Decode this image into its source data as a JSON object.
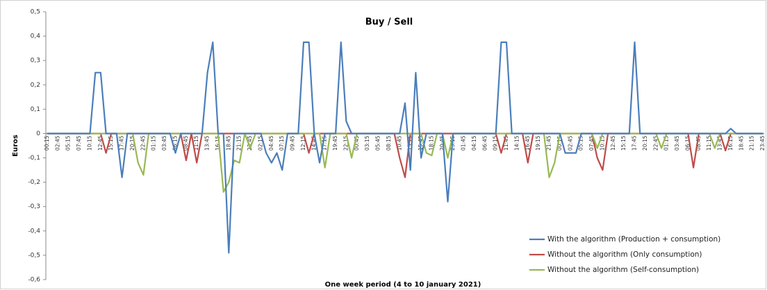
{
  "chart_data": {
    "type": "line",
    "title": "Buy / Sell",
    "x_label": "One week period (4 to 10 january 2021)",
    "y_label": "Euros",
    "categories": [
      "00:15",
      null,
      "02:45",
      null,
      "05:15",
      null,
      "07:45",
      null,
      "10:15",
      null,
      "12:45",
      null,
      "15:15",
      null,
      "17:45",
      null,
      "20:15",
      null,
      "22:45",
      null,
      "01:15",
      null,
      "03:45",
      null,
      "06:15",
      null,
      "08:45",
      null,
      "11:15",
      null,
      "13:45",
      null,
      "16:15",
      null,
      "18:45",
      null,
      "21:15",
      null,
      "23:45",
      null,
      "02:15",
      null,
      "04:45",
      null,
      "07:15",
      null,
      "09:45",
      null,
      "12:15",
      null,
      "14:45",
      null,
      "17:15",
      null,
      "19:45",
      null,
      "22:15",
      null,
      "00:45",
      null,
      "03:15",
      null,
      "05:45",
      null,
      "08:15",
      null,
      "10:45",
      null,
      "13:15",
      null,
      "15:45",
      null,
      "18:15",
      null,
      "20:45",
      null,
      "23:15",
      null,
      "01:45",
      null,
      "04:15",
      null,
      "06:45",
      null,
      "09:15",
      null,
      "11:45",
      null,
      "14:15",
      null,
      "16:45",
      null,
      "19:15",
      null,
      "21:45",
      null,
      "00:15",
      null,
      "02:45",
      null,
      "05:15",
      null,
      "07:45",
      null,
      "10:15",
      null,
      "12:45",
      null,
      "15:15",
      null,
      "17:45",
      null,
      "20:15",
      null,
      "22:45",
      null,
      "01:15",
      null,
      "03:45",
      null,
      "06:15",
      null,
      "08:45",
      null,
      "11:15",
      null,
      "13:45",
      null,
      "16:15",
      null,
      "18:45",
      null,
      "21:15",
      null,
      "23:45"
    ],
    "series": [
      {
        "name": "With the algorithm (Production + consumption)",
        "color": "#4a7ebb",
        "values": [
          0,
          0,
          0,
          0,
          0,
          0,
          0,
          0,
          0,
          0.25,
          0.25,
          0,
          0,
          0,
          -0.18,
          0,
          0,
          0,
          0,
          0,
          0,
          0,
          0,
          0,
          -0.08,
          0,
          0,
          0,
          0,
          0,
          0.25,
          0.375,
          0,
          0,
          -0.49,
          0,
          0,
          0,
          0,
          0,
          0,
          -0.08,
          -0.12,
          -0.08,
          -0.15,
          0,
          0,
          0,
          0.375,
          0.375,
          0,
          -0.12,
          0,
          0,
          0,
          0.375,
          0.05,
          0,
          0,
          0,
          0,
          0,
          0,
          0,
          0,
          0,
          0,
          0.125,
          -0.15,
          0.25,
          -0.1,
          0,
          0,
          0,
          0,
          -0.28,
          0,
          0,
          0,
          0,
          0,
          0,
          0,
          0,
          0,
          0.375,
          0.375,
          0,
          0,
          0,
          0,
          0,
          0,
          0,
          0,
          0,
          0,
          -0.08,
          -0.08,
          -0.08,
          0,
          0,
          0,
          0,
          0,
          0,
          0,
          0,
          0,
          0,
          0.375,
          0,
          0,
          0,
          0,
          0,
          0,
          0,
          0,
          0,
          0,
          0,
          0,
          0,
          0,
          0,
          0,
          0,
          0.02,
          0,
          0,
          0,
          0,
          0,
          0
        ]
      },
      {
        "name": "Without the algorithm (Only consumption)",
        "color": "#be4b48",
        "values": [
          0,
          0,
          0,
          0,
          0,
          0,
          0,
          0,
          0,
          0,
          0,
          -0.08,
          0,
          0,
          0,
          0,
          0,
          0,
          0,
          0,
          0,
          0,
          0,
          0,
          0,
          0,
          -0.11,
          0,
          -0.12,
          0,
          0,
          0,
          0,
          0,
          0,
          0,
          0,
          0,
          0,
          0,
          0,
          0,
          0,
          0,
          0,
          0,
          0,
          0,
          0,
          -0.08,
          0,
          0,
          0,
          0,
          0,
          0,
          0,
          0,
          0,
          0,
          0,
          0,
          0,
          0,
          0,
          0,
          -0.1,
          -0.18,
          0,
          0,
          0,
          0,
          0,
          0,
          0,
          0,
          0,
          0,
          0,
          0,
          0,
          0,
          0,
          0,
          0,
          -0.08,
          0,
          0,
          0,
          0,
          -0.12,
          0,
          0,
          0,
          0,
          0,
          0,
          0,
          0,
          0,
          0,
          0,
          0,
          -0.1,
          -0.15,
          0,
          0,
          0,
          0,
          0,
          0,
          0,
          0,
          0,
          0,
          0,
          0,
          0,
          0,
          0,
          0,
          -0.14,
          0,
          0,
          0,
          0,
          0,
          -0.07,
          0,
          0,
          0,
          0,
          0,
          0,
          0
        ]
      },
      {
        "name": "Without the algorithm (Self-consumption)",
        "color": "#98b954",
        "values": [
          0,
          0,
          0,
          0,
          0,
          0,
          0,
          0,
          0,
          0,
          0,
          0,
          0,
          0,
          0,
          0,
          0,
          -0.12,
          -0.17,
          0,
          0,
          0,
          0,
          0,
          0,
          0,
          0,
          0,
          0,
          0,
          0,
          0,
          0,
          -0.24,
          -0.2,
          -0.11,
          -0.12,
          0,
          -0.06,
          0,
          0,
          0,
          0,
          0,
          0,
          0,
          0,
          0,
          0,
          0,
          0,
          0,
          -0.14,
          0,
          0,
          0,
          0,
          -0.1,
          0,
          0,
          0,
          0,
          0,
          0,
          0,
          0,
          0,
          0,
          0,
          0,
          0,
          -0.08,
          -0.09,
          0,
          0,
          -0.1,
          0,
          0,
          0,
          0,
          0,
          0,
          0,
          0,
          0,
          0,
          0,
          0,
          0,
          0,
          0,
          0,
          0,
          0,
          -0.18,
          -0.12,
          0,
          0,
          0,
          0,
          0,
          0,
          0,
          -0.06,
          0,
          0,
          0,
          0,
          0,
          0,
          0,
          0,
          0,
          0,
          0,
          -0.06,
          0,
          0,
          0,
          0,
          0,
          0,
          0,
          0,
          0,
          -0.06,
          0,
          0,
          0,
          0,
          0,
          0,
          0,
          0,
          0
        ]
      }
    ],
    "ylim": [
      -0.6,
      0.5
    ],
    "yticks": [
      {
        "value": -0.6,
        "label": "-0,6"
      },
      {
        "value": -0.5,
        "label": "-0,5"
      },
      {
        "value": -0.4,
        "label": "-0,4"
      },
      {
        "value": -0.3,
        "label": "-0,3"
      },
      {
        "value": -0.2,
        "label": "-0,2"
      },
      {
        "value": -0.1,
        "label": "-0,1"
      },
      0,
      {
        "value": 0.1,
        "label": "0,1"
      },
      {
        "value": 0.2,
        "label": "0,2"
      },
      {
        "value": 0.3,
        "label": "0,3"
      },
      {
        "value": 0.4,
        "label": "0,4"
      },
      {
        "value": 0.5,
        "label": "0,5"
      }
    ],
    "grid": false,
    "legend": "lower right"
  }
}
